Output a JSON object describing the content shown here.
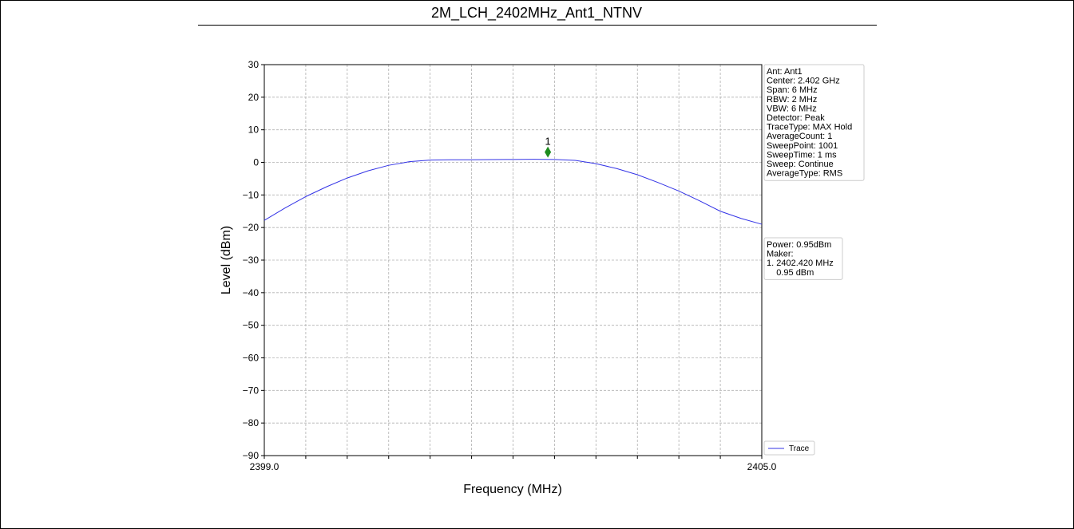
{
  "chart_data": {
    "type": "line",
    "title": "2M_LCH_2402MHz_Ant1_NTNV",
    "xlabel": "Frequency (MHz)",
    "ylabel": "Level (dBm)",
    "xlim": [
      2399,
      2405
    ],
    "xticks": [
      {
        "value": 2399,
        "label": "2399.0"
      },
      {
        "value": 2399.5,
        "label": null
      },
      {
        "value": 2400,
        "label": null
      },
      {
        "value": 2400.5,
        "label": null
      },
      {
        "value": 2401,
        "label": null
      },
      {
        "value": 2401.5,
        "label": null
      },
      {
        "value": 2402,
        "label": null
      },
      {
        "value": 2402.5,
        "label": null
      },
      {
        "value": 2403,
        "label": null
      },
      {
        "value": 2403.5,
        "label": null
      },
      {
        "value": 2404,
        "label": null
      },
      {
        "value": 2404.5,
        "label": null
      },
      {
        "value": 2405,
        "label": "2405.0"
      }
    ],
    "ylim": [
      -90,
      30
    ],
    "yticks": [
      30,
      20,
      10,
      0,
      {
        "value": -10,
        "label": "−10"
      },
      {
        "value": -20,
        "label": "−20"
      },
      {
        "value": -30,
        "label": "−30"
      },
      {
        "value": -40,
        "label": "−40"
      },
      {
        "value": -50,
        "label": "−50"
      },
      {
        "value": -60,
        "label": "−60"
      },
      {
        "value": -70,
        "label": "−70"
      },
      {
        "value": -80,
        "label": "−80"
      },
      {
        "value": -90,
        "label": "−90"
      }
    ],
    "grid": true,
    "x": [
      2399.0,
      2399.25,
      2399.5,
      2399.75,
      2400.0,
      2400.25,
      2400.5,
      2400.75,
      2401.0,
      2401.25,
      2401.5,
      2401.75,
      2402.0,
      2402.25,
      2402.5,
      2402.75,
      2403.0,
      2403.25,
      2403.5,
      2403.75,
      2404.0,
      2404.25,
      2404.5,
      2404.75,
      2405.0
    ],
    "series": [
      {
        "name": "Trace",
        "color": "#3333e6",
        "values": [
          -17.8,
          -14.0,
          -10.5,
          -7.5,
          -4.8,
          -2.6,
          -0.9,
          0.2,
          0.7,
          0.8,
          0.8,
          0.85,
          0.9,
          0.95,
          0.9,
          0.6,
          -0.4,
          -1.9,
          -3.8,
          -6.2,
          -8.8,
          -11.8,
          -15.0,
          -17.2,
          -19.0
        ]
      }
    ],
    "marker": {
      "label": "1",
      "x": 2402.42,
      "y": 0.95,
      "color": "#1e8c1e"
    },
    "legend": "lower right",
    "info_box": [
      "Ant: Ant1",
      "Center: 2.402 GHz",
      "Span: 6 MHz",
      "RBW: 2 MHz",
      "VBW: 6 MHz",
      "Detector: Peak",
      "TraceType: MAX Hold",
      "AverageCount: 1",
      "SweepPoint: 1001",
      "SweepTime: 1 ms",
      "Sweep: Continue",
      "AverageType: RMS"
    ],
    "marker_box": [
      "Power: 0.95dBm",
      "Maker:",
      "1. 2402.420 MHz",
      "    0.95 dBm"
    ]
  }
}
